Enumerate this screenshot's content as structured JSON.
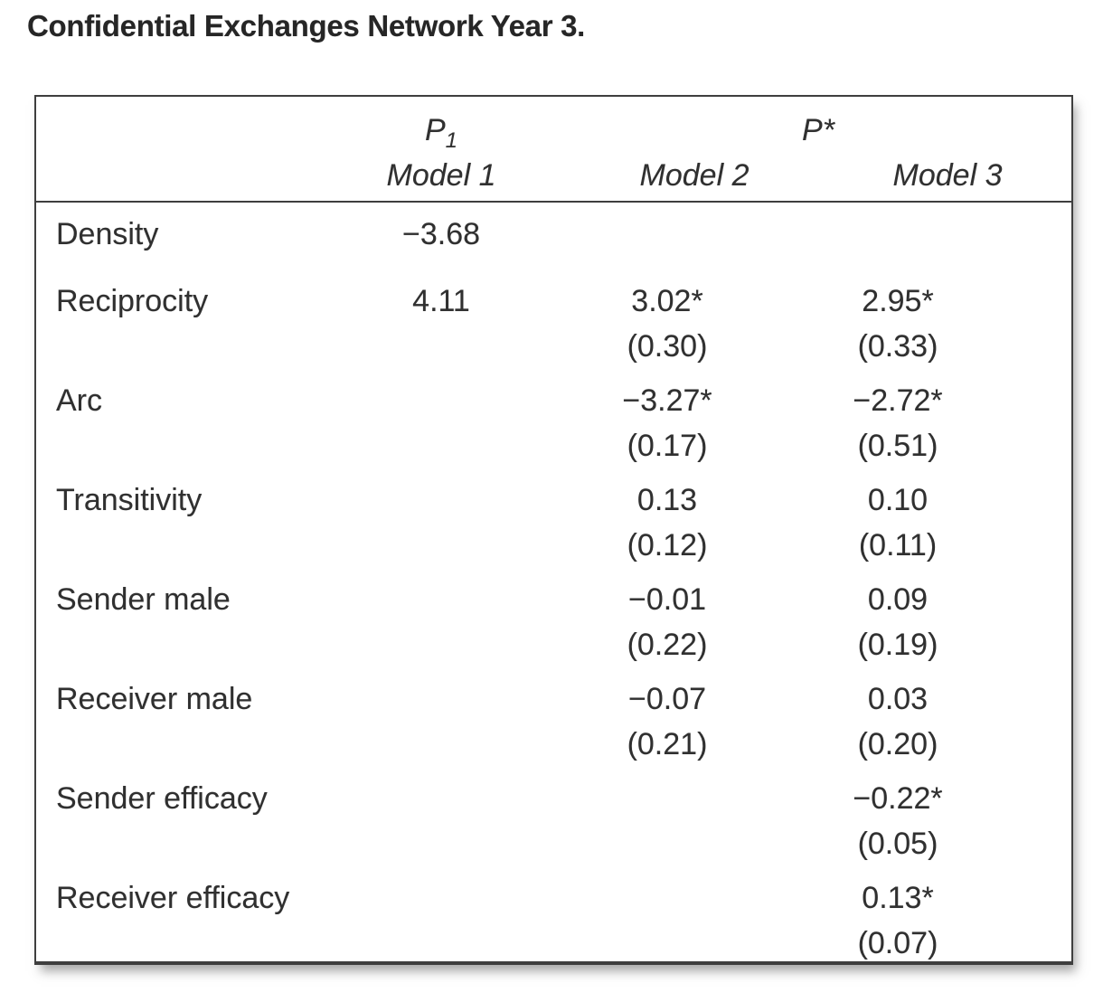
{
  "title": "Confidential Exchanges Network Year 3.",
  "table": {
    "header": {
      "p1": {
        "base": "P",
        "sub": "1"
      },
      "pstar": {
        "base": "P",
        "star": "*"
      },
      "models": [
        "Model 1",
        "Model 2",
        "Model 3"
      ]
    },
    "rows": [
      {
        "label": "Density",
        "cells": [
          {
            "est": "−3.68",
            "se": ""
          },
          {
            "est": "",
            "se": ""
          },
          {
            "est": "",
            "se": ""
          }
        ]
      },
      {
        "label": "Reciprocity",
        "cells": [
          {
            "est": "4.11",
            "se": ""
          },
          {
            "est": "3.02*",
            "se": "(0.30)"
          },
          {
            "est": "2.95*",
            "se": "(0.33)"
          }
        ]
      },
      {
        "label": "Arc",
        "cells": [
          {
            "est": "",
            "se": ""
          },
          {
            "est": "−3.27*",
            "se": "(0.17)"
          },
          {
            "est": "−2.72*",
            "se": "(0.51)"
          }
        ]
      },
      {
        "label": "Transitivity",
        "cells": [
          {
            "est": "",
            "se": ""
          },
          {
            "est": "0.13",
            "se": "(0.12)"
          },
          {
            "est": "0.10",
            "se": "(0.11)"
          }
        ]
      },
      {
        "label": "Sender male",
        "cells": [
          {
            "est": "",
            "se": ""
          },
          {
            "est": "−0.01",
            "se": "(0.22)"
          },
          {
            "est": "0.09",
            "se": "(0.19)"
          }
        ]
      },
      {
        "label": "Receiver male",
        "cells": [
          {
            "est": "",
            "se": ""
          },
          {
            "est": "−0.07",
            "se": "(0.21)"
          },
          {
            "est": "0.03",
            "se": "(0.20)"
          }
        ]
      },
      {
        "label": "Sender efficacy",
        "cells": [
          {
            "est": "",
            "se": ""
          },
          {
            "est": "",
            "se": ""
          },
          {
            "est": "−0.22*",
            "se": "(0.05)"
          }
        ]
      },
      {
        "label": "Receiver efficacy",
        "cells": [
          {
            "est": "",
            "se": ""
          },
          {
            "est": "",
            "se": ""
          },
          {
            "est": "0.13*",
            "se": "(0.07)"
          }
        ]
      }
    ]
  }
}
